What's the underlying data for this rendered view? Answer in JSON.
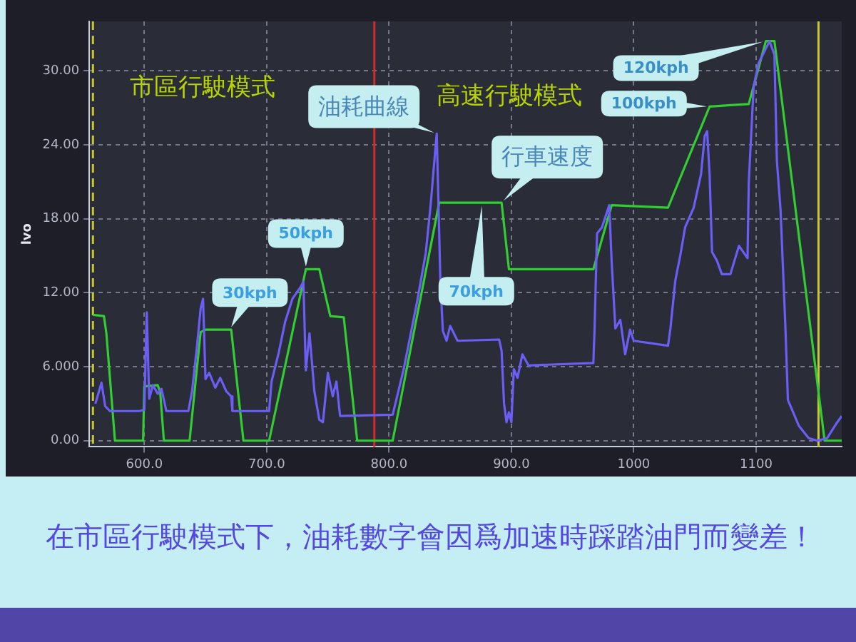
{
  "chart_data": {
    "type": "line",
    "ylabel": "lvo",
    "xlim": [
      555,
      1170
    ],
    "xticks": [
      {
        "value": 600,
        "label": "600.0"
      },
      {
        "value": 700,
        "label": "700.0"
      },
      {
        "value": 800,
        "label": "800.0"
      },
      {
        "value": 900,
        "label": "900.0"
      },
      1000,
      1100
    ],
    "ylim": [
      -0.5,
      34
    ],
    "yticks": [
      {
        "value": 0,
        "label": "0.00"
      },
      {
        "value": 6,
        "label": "6.000"
      },
      {
        "value": 12,
        "label": "12.00"
      },
      {
        "value": 18,
        "label": "18.00"
      },
      {
        "value": 24,
        "label": "24.00"
      },
      {
        "value": 30,
        "label": "30.00"
      }
    ],
    "grid": true,
    "marker": "none",
    "series": [
      {
        "color": "#6a5ef5",
        "x": [
          560,
          565,
          568,
          572,
          596,
          600,
          602,
          604,
          607,
          611,
          614,
          618,
          636,
          639,
          643,
          646,
          648,
          650,
          653,
          658,
          662,
          667,
          671,
          672,
          702,
          704,
          710,
          715,
          721,
          728,
          730,
          732,
          735,
          739,
          743,
          746,
          750,
          754,
          757,
          760,
          803,
          812,
          823,
          830,
          834,
          838,
          839,
          842,
          844,
          847,
          850,
          856,
          890,
          892,
          894,
          896,
          898,
          900,
          902,
          905,
          909,
          914,
          967,
          968,
          970,
          974,
          978,
          980,
          982,
          985,
          989,
          993,
          997,
          1000,
          1028,
          1030,
          1034,
          1038,
          1042,
          1049,
          1055,
          1058,
          1060,
          1062,
          1064,
          1068,
          1072,
          1079,
          1086,
          1093,
          1094,
          1098,
          1102,
          1111,
          1115,
          1117,
          1120,
          1124,
          1126,
          1135,
          1143,
          1150,
          1158,
          1165,
          1170
        ],
        "values": [
          3.0,
          4.7,
          2.8,
          2.4,
          2.4,
          2.5,
          10.4,
          3.4,
          4.5,
          3.8,
          4.2,
          2.4,
          2.4,
          4.0,
          7.6,
          10.7,
          11.5,
          5.0,
          5.5,
          4.3,
          5.1,
          4.0,
          3.6,
          2.4,
          2.4,
          4.8,
          7.2,
          9.6,
          11.5,
          12.5,
          12.9,
          5.7,
          8.7,
          4.0,
          1.7,
          1.5,
          5.5,
          3.6,
          4.8,
          2.0,
          2.1,
          5.8,
          11.3,
          15.2,
          19.1,
          23.8,
          24.9,
          12.8,
          8.9,
          8.1,
          9.3,
          8.1,
          8.2,
          7.3,
          3.0,
          1.5,
          2.3,
          1.5,
          5.8,
          5.1,
          7.0,
          6.1,
          6.3,
          9.1,
          16.8,
          17.3,
          18.5,
          19.1,
          14.4,
          9.1,
          9.8,
          7.0,
          9.0,
          8.1,
          7.7,
          9.1,
          13.0,
          15.0,
          17.3,
          18.9,
          21.6,
          24.7,
          25.1,
          21.6,
          15.3,
          14.6,
          13.5,
          13.5,
          15.8,
          14.8,
          20.9,
          28.7,
          30.6,
          32.4,
          31.3,
          22.7,
          18.7,
          9.1,
          3.3,
          1.2,
          0.2,
          0,
          0.2,
          1.3,
          2.0
        ]
      },
      {
        "color": "#33cc33",
        "x": [
          558,
          567,
          569,
          576,
          599,
          600,
          611,
          613,
          616,
          637,
          646,
          650,
          671,
          681,
          702,
          732,
          743,
          752,
          763,
          774,
          803,
          841,
          892,
          898,
          967,
          982,
          1028,
          1062,
          1094,
          1108,
          1115,
          1156,
          1170
        ],
        "values": [
          10.2,
          10.1,
          8.7,
          0,
          0,
          4.4,
          4.5,
          3.9,
          0,
          0,
          8.8,
          9.0,
          9.0,
          0,
          0,
          13.9,
          13.9,
          10.1,
          10.0,
          0,
          0,
          19.3,
          19.3,
          13.9,
          13.9,
          19.1,
          18.9,
          27.1,
          27.3,
          32.4,
          32.4,
          0,
          0
        ]
      }
    ],
    "ref_lines": [
      {
        "axis": "x",
        "value": 788,
        "color": "#d42a2a"
      },
      {
        "axis": "x",
        "value": 558,
        "color": "#c8c832",
        "line_style": "dashed"
      },
      {
        "axis": "x",
        "value": 1151,
        "color": "#c8c832"
      }
    ],
    "annotations": [
      "市區行駛模式",
      "高速行駛模式",
      {
        "text": "30kph",
        "x": 670,
        "y": 9.0
      },
      {
        "text": "50kph",
        "x": 732,
        "y": 13.9
      },
      {
        "text": "油耗曲線",
        "x": 839,
        "y": 24.9
      },
      {
        "text": "行車速度",
        "x": 892,
        "y": 19.3
      },
      {
        "text": "70kph",
        "x": 876,
        "y": 19.3
      },
      {
        "text": "100kph",
        "x": 1062,
        "y": 27.1
      },
      {
        "text": "120kph",
        "x": 1108,
        "y": 32.4
      },
      "在市區行駛模式下，油耗數字會因爲加速時踩踏油門而變差！"
    ]
  }
}
